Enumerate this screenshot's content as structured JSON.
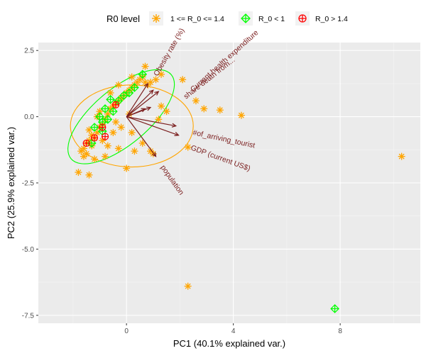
{
  "chart_data": {
    "type": "scatter",
    "subtype": "pca-biplot",
    "title": "",
    "xlabel": "PC1 (40.1% explained var.)",
    "ylabel": "PC2 (25.9% explained var.)",
    "xlim": [
      -3.3,
      11.0
    ],
    "ylim": [
      -7.8,
      2.8
    ],
    "x_ticks": [
      0,
      4,
      8
    ],
    "y_ticks": [
      2.5,
      0.0,
      -2.5,
      -5.0,
      -7.5
    ],
    "x_tick_labels": [
      "0",
      "4",
      "8"
    ],
    "y_tick_labels": [
      "2.5",
      "0.0",
      "-2.5",
      "-5.0",
      "-7.5"
    ],
    "grid": true,
    "legend": {
      "title": "R0 level",
      "position": "top",
      "entries": [
        {
          "label": "1 <= R_0 <= 1.4",
          "color": "#FFA500",
          "marker": "asterisk"
        },
        {
          "label": "R_0 < 1",
          "color": "#00FF00",
          "marker": "diamond-plus"
        },
        {
          "label": "R_0 > 1.4",
          "color": "#FF0000",
          "marker": "circle-plus"
        }
      ]
    },
    "series": [
      {
        "name": "1 <= R_0 <= 1.4",
        "color": "#FFA500",
        "points": [
          [
            -1.6,
            -1.2
          ],
          [
            -1.5,
            -1.0
          ],
          [
            -1.4,
            -0.9
          ],
          [
            -1.7,
            -1.3
          ],
          [
            -1.3,
            -0.7
          ],
          [
            -1.2,
            -0.8
          ],
          [
            -1.5,
            -1.4
          ],
          [
            -1.1,
            -0.6
          ],
          [
            -1.0,
            -0.4
          ],
          [
            -0.9,
            -0.3
          ],
          [
            -1.3,
            -1.1
          ],
          [
            -1.6,
            -1.5
          ],
          [
            -1.8,
            -2.1
          ],
          [
            -1.4,
            -2.2
          ],
          [
            -1.2,
            -1.6
          ],
          [
            -0.8,
            -0.1
          ],
          [
            -0.7,
            0.1
          ],
          [
            -0.6,
            0.3
          ],
          [
            -0.5,
            0.4
          ],
          [
            -0.4,
            0.5
          ],
          [
            -0.3,
            0.6
          ],
          [
            -0.2,
            0.7
          ],
          [
            -0.1,
            0.8
          ],
          [
            0.0,
            0.9
          ],
          [
            0.1,
            1.0
          ],
          [
            0.2,
            1.1
          ],
          [
            0.3,
            1.2
          ],
          [
            0.4,
            1.3
          ],
          [
            0.5,
            1.4
          ],
          [
            0.6,
            1.5
          ],
          [
            0.7,
            1.3
          ],
          [
            0.8,
            1.2
          ],
          [
            0.9,
            1.3
          ],
          [
            1.1,
            1.4
          ],
          [
            1.3,
            1.6
          ],
          [
            0.7,
            1.9
          ],
          [
            0.2,
            1.5
          ],
          [
            -0.3,
            1.2
          ],
          [
            -0.6,
            0.9
          ],
          [
            -1.0,
            0.2
          ],
          [
            -0.9,
            -0.9
          ],
          [
            -0.7,
            -1.1
          ],
          [
            -0.3,
            -1.2
          ],
          [
            0.3,
            -1.3
          ],
          [
            0.9,
            -1.3
          ],
          [
            1.0,
            -1.4
          ],
          [
            0.6,
            -1.0
          ],
          [
            0.2,
            -0.6
          ],
          [
            -0.2,
            -0.4
          ],
          [
            -0.5,
            -0.6
          ],
          [
            -0.8,
            -1.5
          ],
          [
            0.0,
            -1.95
          ],
          [
            2.1,
            1.4
          ],
          [
            2.6,
            0.6
          ],
          [
            2.9,
            0.3
          ],
          [
            3.5,
            0.25
          ],
          [
            4.3,
            0.05
          ],
          [
            2.3,
            -1.15
          ],
          [
            1.3,
            0.4
          ],
          [
            1.2,
            -0.1
          ],
          [
            1.5,
            0.2
          ],
          [
            2.3,
            -6.4
          ],
          [
            10.3,
            -1.5
          ],
          [
            -0.4,
            -0.2
          ],
          [
            0.1,
            0.1
          ],
          [
            -1.1,
            0.0
          ],
          [
            -1.4,
            -0.5
          ]
        ]
      },
      {
        "name": "R_0 < 1",
        "color": "#00FF00",
        "points": [
          [
            0.6,
            1.6
          ],
          [
            0.3,
            1.1
          ],
          [
            0.1,
            0.9
          ],
          [
            -0.1,
            0.8
          ],
          [
            -0.3,
            0.6
          ],
          [
            -0.6,
            0.65
          ],
          [
            -0.8,
            0.3
          ],
          [
            -1.0,
            0.0
          ],
          [
            -0.9,
            -0.2
          ],
          [
            -0.7,
            -0.1
          ],
          [
            -0.5,
            0.2
          ],
          [
            -1.2,
            -0.4
          ],
          [
            -1.3,
            -1.0
          ],
          [
            -0.9,
            -0.55
          ],
          [
            7.8,
            -7.25
          ]
        ]
      },
      {
        "name": "R_0 > 1.4",
        "color": "#FF0000",
        "points": [
          [
            -1.5,
            -1.0
          ],
          [
            -0.9,
            -0.4
          ],
          [
            -0.8,
            -0.75
          ],
          [
            -0.4,
            0.45
          ],
          [
            -1.2,
            -0.8
          ]
        ]
      }
    ],
    "loadings": [
      {
        "label": "Obesity rate (%)",
        "x": 0.8,
        "y": 1.25
      },
      {
        "label": "share death from...",
        "x": 1.0,
        "y": 1.0
      },
      {
        "label": "Current health expenditure",
        "x": 1.2,
        "y": 0.95
      },
      {
        "label": "#of_arriving_tourist",
        "x": 1.85,
        "y": -0.35
      },
      {
        "label": "GDP (current US$)",
        "x": 1.95,
        "y": -0.7
      },
      {
        "label": "population",
        "x": 1.1,
        "y": -1.5
      },
      {
        "label": "",
        "x": 0.7,
        "y": 0.3
      },
      {
        "label": "",
        "x": 0.9,
        "y": 0.35
      }
    ],
    "ellipses": [
      {
        "series": "1 <= R_0 <= 1.4",
        "color": "#FFA500",
        "cx": 0.2,
        "cy": -0.35,
        "rx": 2.3,
        "ry": 1.55,
        "angle_deg": 0
      },
      {
        "series": "R_0 < 1",
        "color": "#00FF00",
        "cx": -0.2,
        "cy": 0.0,
        "rx": 2.45,
        "ry": 1.05,
        "angle_deg": -40
      }
    ]
  }
}
